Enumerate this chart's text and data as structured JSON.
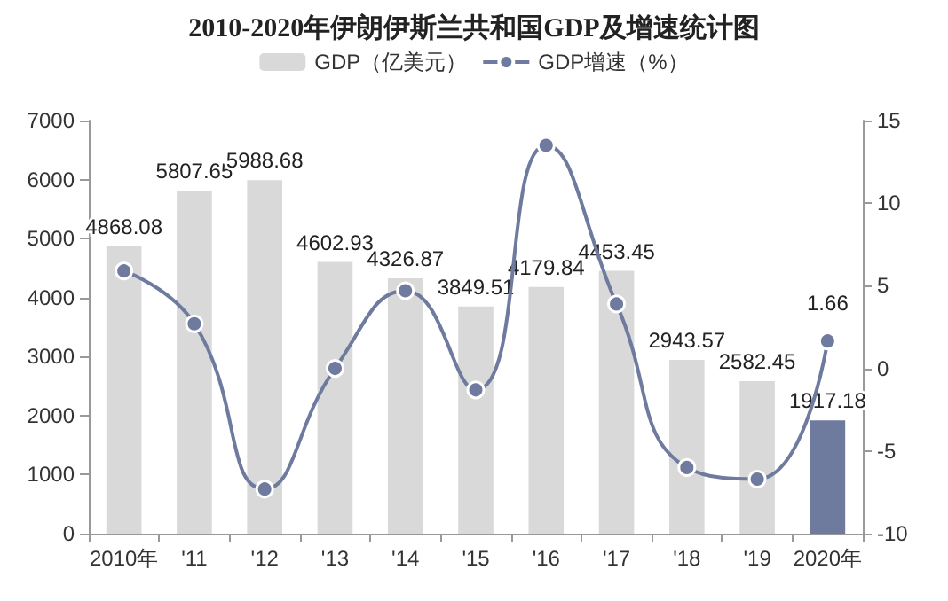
{
  "chart_data": {
    "type": "bar",
    "title": "2010-2020年伊朗伊斯兰共和国GDP及增速统计图",
    "categories": [
      "2010年",
      "'11",
      "'12",
      "'13",
      "'14",
      "'15",
      "'16",
      "'17",
      "'18",
      "'19",
      "2020年"
    ],
    "series": [
      {
        "name": "GDP（亿美元）",
        "color": "#d9d9d9",
        "colors": [
          "#d9d9d9",
          "#d9d9d9",
          "#d9d9d9",
          "#d9d9d9",
          "#d9d9d9",
          "#d9d9d9",
          "#d9d9d9",
          "#d9d9d9",
          "#d9d9d9",
          "#d9d9d9",
          "#6f7b9e"
        ],
        "values": [
          4868.08,
          5807.65,
          5988.68,
          4602.93,
          4326.87,
          3849.51,
          4179.84,
          4453.45,
          2943.57,
          2582.45,
          1917.18
        ],
        "data_labels": true
      },
      {
        "name": "GDP增速（%）",
        "type": "line",
        "axis": "y2",
        "color": "#6f7b9e",
        "marker": "circle",
        "values": [
          5.9,
          2.7,
          -7.3,
          0.0,
          4.7,
          -1.3,
          13.5,
          3.9,
          -6.0,
          -6.7,
          1.66
        ],
        "value_labels": [
          null,
          null,
          null,
          null,
          null,
          null,
          null,
          null,
          null,
          null,
          "1.66"
        ]
      }
    ],
    "ylim": [
      0,
      7000
    ],
    "yticks": [
      0,
      1000,
      2000,
      3000,
      4000,
      5000,
      6000,
      7000
    ],
    "y2lim": [
      -10,
      15
    ],
    "y2ticks": [
      -10,
      -5,
      0,
      5,
      10,
      15
    ],
    "grid": false,
    "legend": "top"
  }
}
